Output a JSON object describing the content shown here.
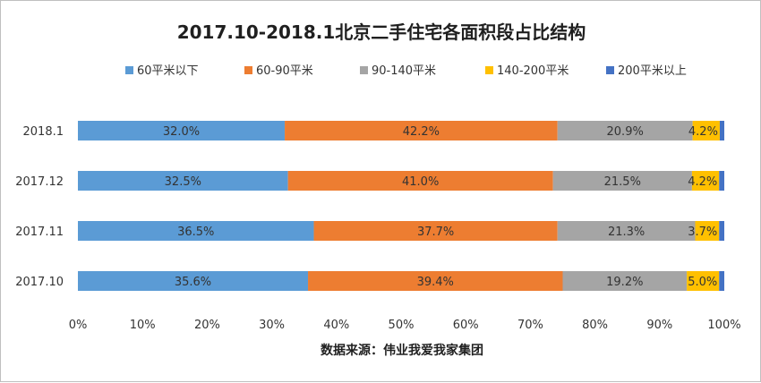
{
  "chart_data": {
    "type": "bar",
    "orientation": "horizontal",
    "stacked": "percent",
    "title": "2017.10-2018.1北京二手住宅各面积段占比结构",
    "categories": [
      "2018.1",
      "2017.12",
      "2017.11",
      "2017.10"
    ],
    "series": [
      {
        "name": "60平米以下",
        "color": "#5b9bd5",
        "values": [
          32.0,
          32.5,
          36.5,
          35.6
        ],
        "labels": [
          "32.0%",
          "32.5%",
          "36.5%",
          "35.6%"
        ]
      },
      {
        "name": "60-90平米",
        "color": "#ed7d31",
        "values": [
          42.2,
          41.0,
          37.7,
          39.4
        ],
        "labels": [
          "42.2%",
          "41.0%",
          "37.7%",
          "39.4%"
        ]
      },
      {
        "name": "90-140平米",
        "color": "#a5a5a5",
        "values": [
          20.9,
          21.5,
          21.3,
          19.2
        ],
        "labels": [
          "20.9%",
          "21.5%",
          "21.3%",
          "19.2%"
        ]
      },
      {
        "name": "140-200平米",
        "color": "#ffc000",
        "values": [
          4.2,
          4.2,
          3.7,
          5.0
        ],
        "labels": [
          "4.2%",
          "4.2%",
          "3.7%",
          "5.0%"
        ]
      },
      {
        "name": "200平米以上",
        "color": "#4472c4",
        "values": [
          0.7,
          0.8,
          0.8,
          0.8
        ],
        "labels": []
      }
    ],
    "xlim": [
      0,
      100
    ],
    "xticks": [
      "0%",
      "10%",
      "20%",
      "30%",
      "40%",
      "50%",
      "60%",
      "70%",
      "80%",
      "90%",
      "100%"
    ],
    "legend_position": "top",
    "grid": false,
    "source": "数据来源：伟业我爱我家集团"
  }
}
